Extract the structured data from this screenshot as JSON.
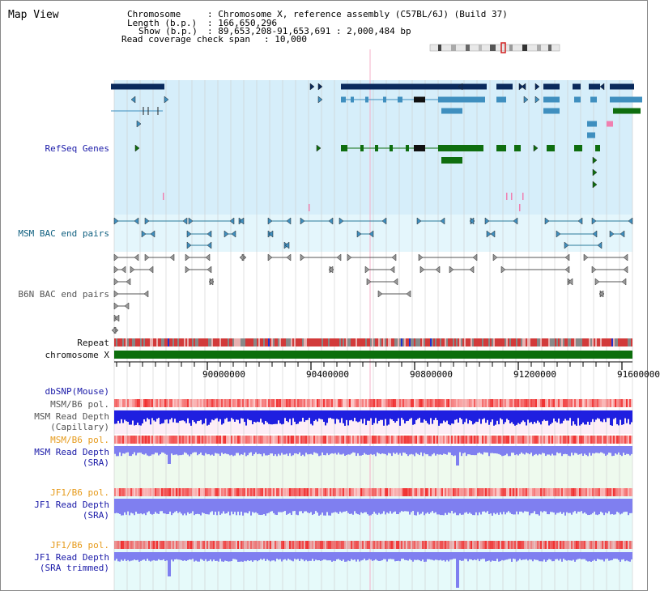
{
  "title": "Map View",
  "info": {
    "chromosome_key": "Chromosome",
    "chromosome_val": ": Chromosome X, reference assembly (C57BL/6J) (Build 37)",
    "length_key": "Length (b.p.)",
    "length_val": ": 166,650,296",
    "show_key": "Show (b.p.)",
    "show_val": ": 89,653,208-91,653,691 : 2,000,484 bp",
    "coverage_key": "Read coverage check span",
    "coverage_val": ": 10,000"
  },
  "tracks": {
    "refseq": "RefSeq Genes",
    "msm_bac": "MSM BAC end pairs",
    "b6n_bac": "B6N BAC end pairs",
    "repeat": "Repeat",
    "chromosome": "chromosome X",
    "dbsnp": "dbSNP(Mouse)",
    "msm_pol": "MSM/B6 pol.",
    "msm_depth_cap_1": "MSM Read Depth",
    "msm_depth_cap_2": "(Capillary)",
    "msm_pol_2": "MSM/B6 pol.",
    "msm_depth_sra_1": "MSM Read Depth",
    "msm_depth_sra_2": "(SRA)",
    "jf1_pol": "JF1/B6 pol.",
    "jf1_depth_sra_1": "JF1 Read Depth",
    "jf1_depth_sra_2": "(SRA)",
    "jf1_pol_2": "JF1/B6 pol.",
    "jf1_depth_trim_1": "JF1 Read Depth",
    "jf1_depth_trim_2": "(SRA trimmed)"
  },
  "axis": {
    "ticks": [
      "90000000",
      "90400000",
      "90800000",
      "91200000",
      "91600000"
    ]
  },
  "colors": {
    "refseq_bg": "#d6eefa",
    "gene_navy": "#0a2a5c",
    "gene_blue": "#3f8fbf",
    "gene_green": "#0f6e0f",
    "pink": "#f080b0",
    "msm_bac_bg": "#e4f6fc",
    "bac_line": "#2a7a9a",
    "b6n_line": "#555555",
    "repeat_red": "#d23a3a",
    "chrom_green": "#0c6e0c",
    "pol_red": "#f03030",
    "depth_blue": "#1f1fe0",
    "depth_light": "#7f7ff0",
    "pink_bg": "#fdeef6",
    "lightgreen_bg": "#eefaee",
    "cyan_bg": "#e6fafa"
  }
}
